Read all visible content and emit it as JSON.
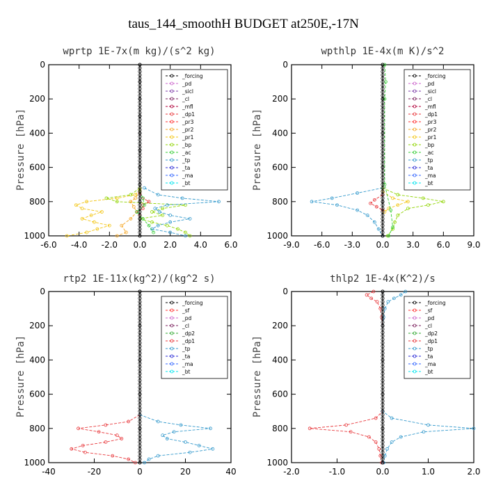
{
  "figure_title": "taus_144_smoothH  BUDGET at250E,-17N",
  "colors": {
    "_forcing": "#000000",
    "_pd": "#cc66cc",
    "_sicl": "#7e3ea8",
    "_cl": "#7a1f5c",
    "_mfl": "#b0003a",
    "_dp1": "#e8383c",
    "_pr3": "#ff3030",
    "_pr2": "#f5a623",
    "_pr1": "#f2c40f",
    "_bp": "#8fd400",
    "_ac": "#33cc33",
    "_tp": "#3399cc",
    "_ta": "#2b2bd6",
    "_ma": "#3366ff",
    "_bt": "#00e5ee",
    "_sf": "#ff3030",
    "_dp2": "#33aa33"
  },
  "chart_data": [
    {
      "type": "line",
      "panel_title": "wprtp  1E-7x(m kg)/(s^2 kg)",
      "ylabel": "Pressure [hPa]",
      "xlim": [
        -6,
        6
      ],
      "ylim": [
        1000,
        0
      ],
      "xticks": [
        -6,
        -4,
        -2,
        0,
        2,
        4,
        6
      ],
      "xtick_labels": [
        "-6.0",
        "-4.0",
        "-2.0",
        "0.0",
        "2.0",
        "4.0",
        "6.0"
      ],
      "yticks": [
        0,
        200,
        400,
        600,
        800,
        1000
      ],
      "ytick_labels": [
        "0",
        "200",
        "400",
        "600",
        "800",
        "1000"
      ],
      "legend_position": "top-right",
      "legend": [
        "_forcing",
        "_pd",
        "_sicl",
        "_cl",
        "_mfl",
        "_dp1",
        "_pr3",
        "_pr2",
        "_pr1",
        "_bp",
        "_ac",
        "_tp",
        "_ta",
        "_ma",
        "_bt"
      ],
      "series": [
        {
          "name": "_pr1",
          "y": [
            730,
            760,
            780,
            800,
            820,
            840,
            860,
            880,
            900,
            920,
            940,
            960,
            980,
            1000
          ],
          "x": [
            0,
            -0.3,
            -1.5,
            -3.5,
            -4.2,
            -3.8,
            -2.5,
            -3.2,
            -3.8,
            -3.0,
            -2.0,
            -2.8,
            -3.5,
            -4.8
          ]
        },
        {
          "name": "_bp",
          "y": [
            720,
            760,
            780,
            800,
            820,
            840,
            860,
            880,
            900,
            920,
            940,
            960,
            980,
            1000
          ],
          "x": [
            0,
            -0.6,
            -2.2,
            -1.5,
            3.0,
            1.5,
            0.8,
            1.5,
            0,
            0.8,
            1.8,
            2.5,
            3.0,
            3.3
          ]
        },
        {
          "name": "_tp",
          "y": [
            720,
            760,
            780,
            800,
            820,
            840,
            860,
            880,
            900,
            920,
            940,
            960,
            980,
            1000
          ],
          "x": [
            0.3,
            1.2,
            2.8,
            5.2,
            1.8,
            1.0,
            1.3,
            2.0,
            3.3,
            2.0,
            1.2,
            0.8,
            2.0,
            3.0
          ]
        },
        {
          "name": "_pr2",
          "y": [
            740,
            780,
            800,
            830,
            860,
            900,
            940,
            980,
            1000
          ],
          "x": [
            0,
            -0.3,
            -0.6,
            -0.4,
            -0.2,
            -0.6,
            -1.2,
            -0.9,
            -1.5
          ]
        },
        {
          "name": "_dp1",
          "y": [
            750,
            780,
            800,
            820,
            840,
            860,
            880
          ],
          "x": [
            0,
            0.2,
            0.6,
            0.2,
            0.2,
            -0.2,
            0
          ]
        },
        {
          "name": "_ac",
          "y": [
            740,
            780,
            820,
            860,
            900,
            940,
            980
          ],
          "x": [
            0,
            0.2,
            0.3,
            -0.2,
            0.2,
            0.6,
            0.9
          ]
        },
        {
          "name": "_forcing",
          "y": [
            0,
            100,
            200,
            300,
            400,
            500,
            600,
            700,
            800,
            900,
            1000
          ],
          "x": [
            0,
            0,
            0,
            0,
            0,
            0,
            0,
            0,
            0,
            0,
            0
          ]
        }
      ]
    },
    {
      "type": "line",
      "panel_title": "wpthlp  1E-4x(m K)/s^2",
      "ylabel": "Pressure [hPa]",
      "xlim": [
        -9,
        9
      ],
      "ylim": [
        1000,
        0
      ],
      "xticks": [
        -9,
        -6,
        -3,
        0,
        3,
        6,
        9
      ],
      "xtick_labels": [
        "-9.0",
        "-6.0",
        "-3.0",
        "0.0",
        "3.0",
        "6.0",
        "9.0"
      ],
      "yticks": [
        0,
        200,
        400,
        600,
        800,
        1000
      ],
      "ytick_labels": [
        "0",
        "200",
        "400",
        "600",
        "800",
        "1000"
      ],
      "legend_position": "top-right",
      "legend": [
        "_forcing",
        "_pd",
        "_sicl",
        "_cl",
        "_mfl",
        "_dp1",
        "_pr3",
        "_pr2",
        "_pr1",
        "_bp",
        "_ac",
        "_tp",
        "_ta",
        "_ma",
        "_bt"
      ],
      "series": [
        {
          "name": "_tp",
          "y": [
            720,
            750,
            780,
            800,
            820,
            850,
            880,
            920,
            960,
            1000
          ],
          "x": [
            0,
            -2.5,
            -5.0,
            -7.0,
            -4.5,
            -2.5,
            -1.5,
            -0.8,
            -0.4,
            0
          ]
        },
        {
          "name": "_bp",
          "y": [
            720,
            760,
            780,
            800,
            820,
            840,
            880,
            920,
            960,
            1000
          ],
          "x": [
            0,
            1.5,
            4.0,
            6.0,
            4.5,
            2.5,
            1.5,
            1.2,
            1.0,
            0.5
          ]
        },
        {
          "name": "_pr1",
          "y": [
            740,
            780,
            800,
            820,
            840,
            860
          ],
          "x": [
            0,
            1.0,
            2.5,
            1.5,
            0.6,
            0.2
          ]
        },
        {
          "name": "_dp1",
          "y": [
            760,
            790,
            810,
            830,
            850
          ],
          "x": [
            0,
            -0.8,
            -1.2,
            -0.6,
            0
          ]
        },
        {
          "name": "_ac",
          "y": [
            0,
            100,
            200,
            700,
            850,
            950,
            1000
          ],
          "x": [
            0.2,
            0.3,
            0.2,
            0.2,
            0.8,
            1.0,
            0.6
          ]
        },
        {
          "name": "_forcing",
          "y": [
            0,
            200,
            400,
            600,
            800,
            1000
          ],
          "x": [
            0,
            0,
            0,
            0,
            0,
            0
          ]
        }
      ]
    },
    {
      "type": "line",
      "panel_title": "rtp2  1E-11x(kg^2)/(kg^2 s)",
      "ylabel": "Pressure [hPa]",
      "xlim": [
        -40,
        40
      ],
      "ylim": [
        1000,
        0
      ],
      "xticks": [
        -40,
        -20,
        0,
        20,
        40
      ],
      "xtick_labels": [
        "-40",
        "-20",
        "0",
        "20",
        "40"
      ],
      "yticks": [
        0,
        200,
        400,
        600,
        800,
        1000
      ],
      "ytick_labels": [
        "0",
        "200",
        "400",
        "600",
        "800",
        "1000"
      ],
      "legend_position": "top-right",
      "legend": [
        "_forcing",
        "_sf",
        "_pd",
        "_cl",
        "_dp2",
        "_dp1",
        "_tp",
        "_ta",
        "_ma",
        "_bt"
      ],
      "series": [
        {
          "name": "_dp1",
          "y": [
            720,
            760,
            780,
            800,
            820,
            840,
            860,
            880,
            900,
            920,
            940,
            960,
            980,
            1000
          ],
          "x": [
            0,
            -5,
            -15,
            -27,
            -18,
            -10,
            -8,
            -15,
            -25,
            -30,
            -24,
            -12,
            -5,
            -2
          ]
        },
        {
          "name": "_tp",
          "y": [
            720,
            760,
            780,
            800,
            820,
            840,
            860,
            880,
            900,
            920,
            940,
            960,
            980,
            1000
          ],
          "x": [
            0,
            8,
            18,
            31,
            15,
            10,
            12,
            20,
            26,
            32,
            22,
            8,
            4,
            2
          ]
        },
        {
          "name": "_forcing",
          "y": [
            0,
            200,
            400,
            600,
            800,
            1000
          ],
          "x": [
            0,
            0,
            0,
            0,
            0,
            0
          ]
        }
      ]
    },
    {
      "type": "line",
      "panel_title": "thlp2  1E-4x(K^2)/s",
      "ylabel": "Pressure [hPa]",
      "xlim": [
        -2,
        2
      ],
      "ylim": [
        1000,
        0
      ],
      "xticks": [
        -2,
        -1,
        0,
        1,
        2
      ],
      "xtick_labels": [
        "-2.0",
        "-1.0",
        "0.0",
        "1.0",
        "2.0"
      ],
      "yticks": [
        0,
        200,
        400,
        600,
        800,
        1000
      ],
      "ytick_labels": [
        "0",
        "200",
        "400",
        "600",
        "800",
        "1000"
      ],
      "legend_position": "top-right",
      "legend": [
        "_forcing",
        "_sf",
        "_pd",
        "_cl",
        "_dp2",
        "_dp1",
        "_tp",
        "_ta",
        "_ma",
        "_bt"
      ],
      "series": [
        {
          "name": "_dp1",
          "y": [
            0,
            20,
            40,
            60,
            100,
            150,
            200,
            700,
            740,
            780,
            800,
            820,
            850,
            880,
            920,
            960,
            1000
          ],
          "x": [
            -0.2,
            -0.35,
            -0.25,
            -0.12,
            -0.05,
            -0.02,
            0,
            0,
            -0.15,
            -0.8,
            -1.6,
            -0.7,
            -0.3,
            -0.15,
            -0.08,
            -0.05,
            -0.02
          ]
        },
        {
          "name": "_tp",
          "y": [
            0,
            20,
            40,
            60,
            100,
            150,
            200,
            700,
            740,
            780,
            800,
            820,
            850,
            880,
            920,
            960,
            1000
          ],
          "x": [
            0.5,
            0.4,
            0.25,
            0.12,
            0.05,
            0.02,
            0,
            0,
            0.2,
            1.0,
            2.0,
            0.9,
            0.4,
            0.2,
            0.1,
            0.05,
            0.02
          ]
        },
        {
          "name": "_forcing",
          "y": [
            0,
            200,
            400,
            600,
            800,
            1000
          ],
          "x": [
            0,
            0,
            0,
            0,
            0,
            0
          ]
        }
      ]
    }
  ]
}
